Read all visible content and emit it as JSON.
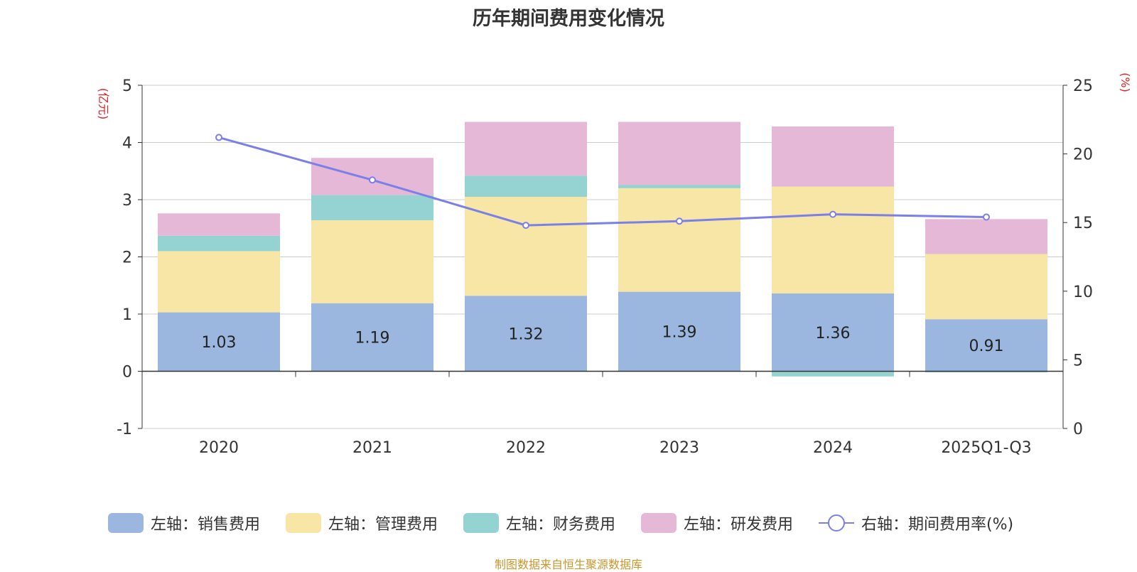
{
  "title": "历年期间费用变化情况",
  "source": "制图数据来自恒生聚源数据库",
  "colors": {
    "sales": "#9bb7e0",
    "admin": "#f7e6a6",
    "finance": "#95d3d3",
    "rd": "#e6b8d8",
    "rate_line": "#7b7fe8",
    "unit_text": "#e02020"
  },
  "chart_data": {
    "type": "bar",
    "stacked": true,
    "title": "历年期间费用变化情况",
    "categories": [
      "2020",
      "2021",
      "2022",
      "2023",
      "2024",
      "2025Q1-Q3"
    ],
    "left_axis": {
      "unit": "(亿元)",
      "range": [
        -1,
        5
      ],
      "ticks": [
        -1,
        0,
        1,
        2,
        3,
        4,
        5
      ]
    },
    "right_axis": {
      "unit": "(%)",
      "range": [
        0,
        25
      ],
      "ticks": [
        0,
        5,
        10,
        15,
        20,
        25
      ]
    },
    "series": [
      {
        "name": "左轴：销售费用",
        "key": "sales",
        "axis": "left",
        "values": [
          1.03,
          1.19,
          1.32,
          1.39,
          1.36,
          0.91
        ],
        "show_labels": true
      },
      {
        "name": "左轴：管理费用",
        "key": "admin",
        "axis": "left",
        "values": [
          1.07,
          1.45,
          1.73,
          1.81,
          1.87,
          1.14
        ],
        "show_labels": false
      },
      {
        "name": "左轴：财务费用",
        "key": "finance",
        "axis": "left",
        "values": [
          0.27,
          0.44,
          0.37,
          0.06,
          -0.09,
          -0.02
        ],
        "show_labels": false
      },
      {
        "name": "左轴：研发费用",
        "key": "rd",
        "axis": "left",
        "values": [
          0.39,
          0.65,
          0.94,
          1.1,
          1.05,
          0.61
        ],
        "show_labels": false
      }
    ],
    "line_series": [
      {
        "name": "右轴：期间费用率(%)",
        "key": "rate_line",
        "axis": "right",
        "values": [
          21.2,
          18.1,
          14.8,
          15.1,
          15.6,
          15.4
        ]
      }
    ],
    "legend_position": "bottom"
  }
}
